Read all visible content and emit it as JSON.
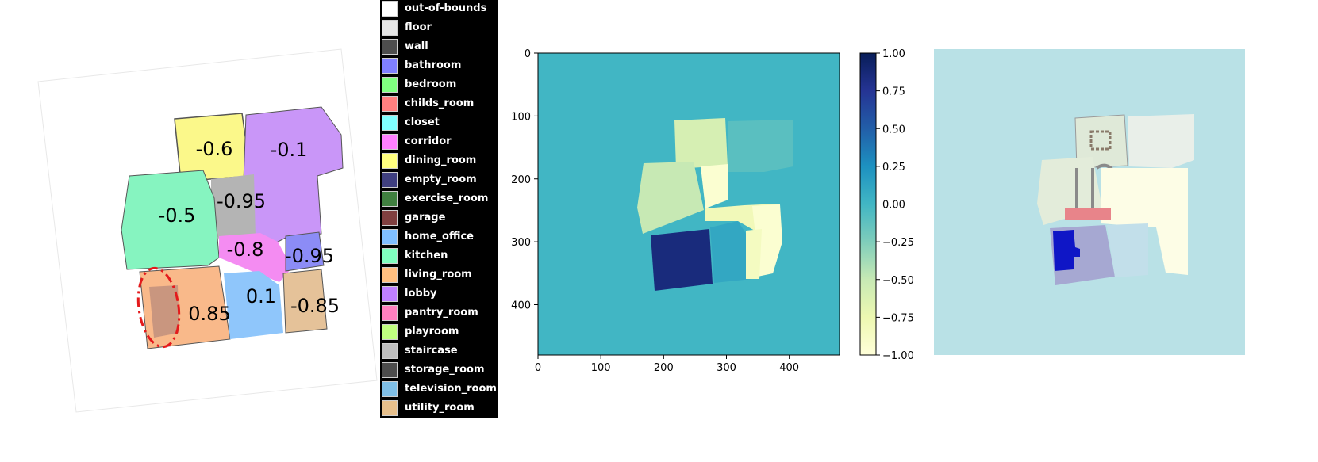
{
  "floorplan": {
    "room_values": [
      {
        "room": "dining_room",
        "label": "-0.6",
        "fill": "#fbf88a"
      },
      {
        "room": "lobby",
        "label": "-0.1",
        "fill": "#c996f8"
      },
      {
        "room": "staircase",
        "label": "-0.95",
        "fill": "#b4b4b4"
      },
      {
        "room": "kitchen",
        "label": "-0.5",
        "fill": "#86f4c0"
      },
      {
        "room": "corridor",
        "label": "-0.8",
        "fill": "#f48cf2"
      },
      {
        "room": "bathroom",
        "label": "-0.95",
        "fill": "#8c8cf6"
      },
      {
        "room": "living_room",
        "label": "0.85",
        "fill": "#f9b98a"
      },
      {
        "room": "home_office",
        "label": "0.1",
        "fill": "#8fc6fb"
      },
      {
        "room": "utility_room",
        "label": "-0.85",
        "fill": "#e5c299"
      }
    ],
    "highlight_color": "#e41a1c"
  },
  "legend": {
    "items": [
      {
        "label": "out-of-bounds",
        "color": "#ffffff"
      },
      {
        "label": "floor",
        "color": "#e6e6e6"
      },
      {
        "label": "wall",
        "color": "#4d4d4d"
      },
      {
        "label": "bathroom",
        "color": "#8080ff"
      },
      {
        "label": "bedroom",
        "color": "#80ff80"
      },
      {
        "label": "childs_room",
        "color": "#ff8080"
      },
      {
        "label": "closet",
        "color": "#80ffff"
      },
      {
        "label": "corridor",
        "color": "#ff80ff"
      },
      {
        "label": "dining_room",
        "color": "#ffff80"
      },
      {
        "label": "empty_room",
        "color": "#404080"
      },
      {
        "label": "exercise_room",
        "color": "#408040"
      },
      {
        "label": "garage",
        "color": "#804040"
      },
      {
        "label": "home_office",
        "color": "#80bfff"
      },
      {
        "label": "kitchen",
        "color": "#80ffbf"
      },
      {
        "label": "living_room",
        "color": "#ffbf80"
      },
      {
        "label": "lobby",
        "color": "#bf80ff"
      },
      {
        "label": "pantry_room",
        "color": "#ff80bf"
      },
      {
        "label": "playroom",
        "color": "#bfff80"
      },
      {
        "label": "staircase",
        "color": "#bfbfbf"
      },
      {
        "label": "storage_room",
        "color": "#4d4d4d"
      },
      {
        "label": "television_room",
        "color": "#80bfe6"
      },
      {
        "label": "utility_room",
        "color": "#e6bf8c"
      }
    ]
  },
  "chart_data": {
    "type": "heatmap",
    "xlim": [
      0,
      480
    ],
    "ylim": [
      480,
      0
    ],
    "x_ticks": [
      "0",
      "100",
      "200",
      "300",
      "400"
    ],
    "y_ticks": [
      "0",
      "100",
      "200",
      "300",
      "400"
    ],
    "background_value": 0.0,
    "colorbar": {
      "colormap": "YlGnBu",
      "range": [
        -1.0,
        1.0
      ],
      "ticks": [
        "1.00",
        "0.75",
        "0.50",
        "0.25",
        "0.00",
        "−0.25",
        "−0.50",
        "−0.75",
        "−1.00"
      ]
    },
    "regions": [
      {
        "room": "dining_room",
        "value": -0.6
      },
      {
        "room": "lobby",
        "value": -0.1
      },
      {
        "room": "kitchen",
        "value": -0.5
      },
      {
        "room": "staircase",
        "value": -0.95
      },
      {
        "room": "corridor",
        "value": -0.8
      },
      {
        "room": "bathroom",
        "value": -0.95
      },
      {
        "room": "living_room",
        "value": 0.85
      },
      {
        "room": "home_office",
        "value": 0.1
      },
      {
        "room": "utility_room",
        "value": -0.85
      }
    ]
  },
  "overlay": {
    "background": "#b9e1e6"
  }
}
